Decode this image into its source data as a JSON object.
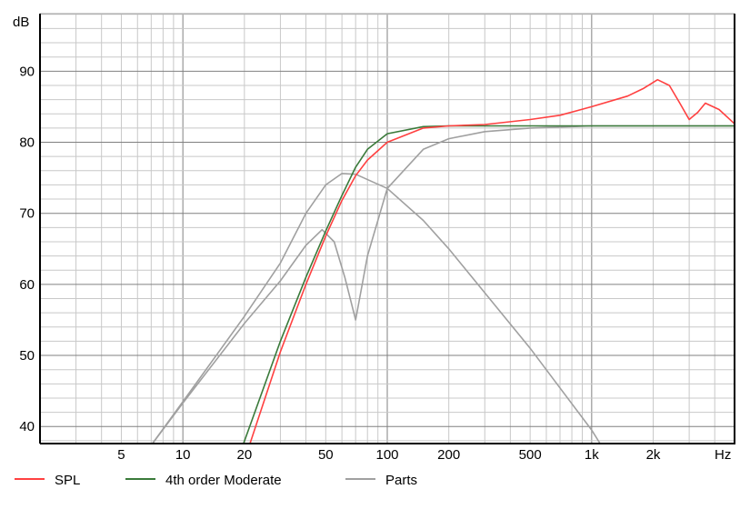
{
  "chart_data": {
    "type": "line",
    "title": "",
    "xlabel": "Hz",
    "ylabel": "dB",
    "xscale": "log",
    "xlim": [
      2,
      5000
    ],
    "ylim": [
      37.6,
      98.1
    ],
    "grid": true,
    "legend_placement": "bottom",
    "x_ticks": [
      {
        "v": 5,
        "label": "5"
      },
      {
        "v": 10,
        "label": "10"
      },
      {
        "v": 20,
        "label": "20"
      },
      {
        "v": 50,
        "label": "50"
      },
      {
        "v": 100,
        "label": "100"
      },
      {
        "v": 200,
        "label": "200"
      },
      {
        "v": 500,
        "label": "500"
      },
      {
        "v": 1000,
        "label": "1k"
      },
      {
        "v": 2000,
        "label": "2k"
      }
    ],
    "y_ticks": [
      {
        "v": 90,
        "label": "90"
      },
      {
        "v": 80,
        "label": "80"
      },
      {
        "v": 70,
        "label": "70"
      },
      {
        "v": 60,
        "label": "60"
      },
      {
        "v": 50,
        "label": "50"
      },
      {
        "v": 40,
        "label": "40"
      }
    ],
    "series": [
      {
        "name": "SPL",
        "color": "#ff4040",
        "legend": true,
        "points": [
          [
            21.3,
            37.6
          ],
          [
            30,
            50.5
          ],
          [
            40,
            60
          ],
          [
            50,
            66.8
          ],
          [
            60,
            71.8
          ],
          [
            70,
            75.3
          ],
          [
            80,
            77.5
          ],
          [
            100,
            80
          ],
          [
            150,
            82
          ],
          [
            200,
            82.3
          ],
          [
            300,
            82.5
          ],
          [
            500,
            83.2
          ],
          [
            700,
            83.8
          ],
          [
            1000,
            85
          ],
          [
            1500,
            86.5
          ],
          [
            1800,
            87.6
          ],
          [
            2100,
            88.8
          ],
          [
            2400,
            88
          ],
          [
            2700,
            85.5
          ],
          [
            3000,
            83.2
          ],
          [
            3300,
            84.2
          ],
          [
            3600,
            85.5
          ],
          [
            4200,
            84.6
          ],
          [
            5000,
            82.6
          ]
        ]
      },
      {
        "name": "4th order Moderate",
        "color": "#3a7a3a",
        "legend": true,
        "points": [
          [
            19.8,
            37.6
          ],
          [
            30,
            52
          ],
          [
            40,
            61
          ],
          [
            50,
            67.5
          ],
          [
            60,
            72.5
          ],
          [
            70,
            76.5
          ],
          [
            80,
            79
          ],
          [
            100,
            81.2
          ],
          [
            150,
            82.2
          ],
          [
            200,
            82.3
          ],
          [
            5000,
            82.3
          ]
        ]
      },
      {
        "name": "Parts",
        "color": "#a0a0a0",
        "legend": true,
        "points": [
          [
            7.1,
            37.6
          ],
          [
            10,
            43.5
          ],
          [
            20,
            55.5
          ],
          [
            30,
            63
          ],
          [
            40,
            70
          ],
          [
            50,
            74
          ],
          [
            60,
            75.6
          ],
          [
            70,
            75.5
          ],
          [
            100,
            73.5
          ],
          [
            150,
            69
          ],
          [
            200,
            65
          ],
          [
            500,
            51
          ],
          [
            1000,
            39.5
          ],
          [
            1100,
            37.6
          ]
        ]
      },
      {
        "name": "Parts",
        "color": "#a0a0a0",
        "legend": false,
        "points": [
          [
            7.1,
            37.6
          ],
          [
            10,
            43.3
          ],
          [
            20,
            54.5
          ],
          [
            30,
            60.5
          ],
          [
            40,
            65.5
          ],
          [
            48,
            67.7
          ],
          [
            55,
            66
          ],
          [
            62,
            61
          ],
          [
            70,
            55
          ],
          [
            80,
            64
          ],
          [
            100,
            73.5
          ],
          [
            150,
            79
          ],
          [
            200,
            80.5
          ],
          [
            300,
            81.5
          ],
          [
            500,
            82
          ],
          [
            1000,
            82.3
          ],
          [
            5000,
            82.3
          ]
        ]
      }
    ]
  }
}
